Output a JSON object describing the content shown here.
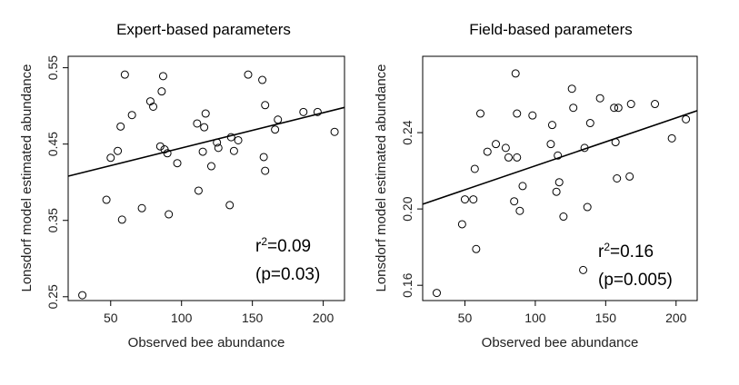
{
  "chart_data": [
    {
      "type": "scatter",
      "title": "Expert-based parameters",
      "xlabel": "Observed bee abundance",
      "ylabel": "Lonsdorf model estimated abundance",
      "xlim": [
        20,
        215
      ],
      "ylim": [
        0.245,
        0.565
      ],
      "xticks": [
        50,
        100,
        150,
        200
      ],
      "xtick_labels": [
        "50",
        "100",
        "150",
        "200"
      ],
      "yticks": [
        0.25,
        0.35,
        0.45,
        0.55
      ],
      "ytick_labels": [
        "0.25",
        "0.35",
        "0.45",
        "0.55"
      ],
      "annotation": {
        "r2_prefix": "r",
        "r2_sup": "2",
        "r2_value": "=0.09",
        "p_text": "(p=0.03)"
      },
      "fit_line": {
        "x": [
          20,
          215
        ],
        "y": [
          0.408,
          0.498
        ]
      },
      "points": [
        {
          "x": 30,
          "y": 0.252
        },
        {
          "x": 47,
          "y": 0.377
        },
        {
          "x": 50,
          "y": 0.432
        },
        {
          "x": 55,
          "y": 0.441
        },
        {
          "x": 57,
          "y": 0.473
        },
        {
          "x": 58,
          "y": 0.351
        },
        {
          "x": 60,
          "y": 0.541
        },
        {
          "x": 65,
          "y": 0.488
        },
        {
          "x": 72,
          "y": 0.366
        },
        {
          "x": 78,
          "y": 0.506
        },
        {
          "x": 80,
          "y": 0.499
        },
        {
          "x": 85,
          "y": 0.447
        },
        {
          "x": 86,
          "y": 0.519
        },
        {
          "x": 87,
          "y": 0.539
        },
        {
          "x": 88,
          "y": 0.443
        },
        {
          "x": 90,
          "y": 0.438
        },
        {
          "x": 91,
          "y": 0.358
        },
        {
          "x": 97,
          "y": 0.425
        },
        {
          "x": 111,
          "y": 0.477
        },
        {
          "x": 112,
          "y": 0.389
        },
        {
          "x": 115,
          "y": 0.44
        },
        {
          "x": 116,
          "y": 0.472
        },
        {
          "x": 117,
          "y": 0.49
        },
        {
          "x": 121,
          "y": 0.421
        },
        {
          "x": 125,
          "y": 0.452
        },
        {
          "x": 126,
          "y": 0.445
        },
        {
          "x": 134,
          "y": 0.37
        },
        {
          "x": 135,
          "y": 0.459
        },
        {
          "x": 137,
          "y": 0.441
        },
        {
          "x": 140,
          "y": 0.455
        },
        {
          "x": 147,
          "y": 0.541
        },
        {
          "x": 157,
          "y": 0.534
        },
        {
          "x": 158,
          "y": 0.433
        },
        {
          "x": 159,
          "y": 0.415
        },
        {
          "x": 159,
          "y": 0.501
        },
        {
          "x": 166,
          "y": 0.469
        },
        {
          "x": 168,
          "y": 0.482
        },
        {
          "x": 186,
          "y": 0.492
        },
        {
          "x": 196,
          "y": 0.492
        },
        {
          "x": 208,
          "y": 0.466
        }
      ]
    },
    {
      "type": "scatter",
      "title": "Field-based parameters",
      "xlabel": "Observed bee abundance",
      "ylabel": "Lonsdorf model estimated abundance",
      "xlim": [
        20,
        215
      ],
      "ylim": [
        0.152,
        0.28
      ],
      "xticks": [
        50,
        100,
        150,
        200
      ],
      "xtick_labels": [
        "50",
        "100",
        "150",
        "200"
      ],
      "yticks": [
        0.16,
        0.2,
        0.24
      ],
      "ytick_labels": [
        "0.16",
        "0.20",
        "0.24"
      ],
      "annotation": {
        "r2_prefix": "r",
        "r2_sup": "2",
        "r2_value": "=0.16",
        "p_text": "(p=0.005)"
      },
      "fit_line": {
        "x": [
          20,
          215
        ],
        "y": [
          0.2025,
          0.2515
        ]
      },
      "points": [
        {
          "x": 30,
          "y": 0.156
        },
        {
          "x": 48,
          "y": 0.192
        },
        {
          "x": 50,
          "y": 0.205
        },
        {
          "x": 56,
          "y": 0.205
        },
        {
          "x": 57,
          "y": 0.221
        },
        {
          "x": 58,
          "y": 0.179
        },
        {
          "x": 61,
          "y": 0.25
        },
        {
          "x": 66,
          "y": 0.23
        },
        {
          "x": 72,
          "y": 0.234
        },
        {
          "x": 79,
          "y": 0.232
        },
        {
          "x": 81,
          "y": 0.227
        },
        {
          "x": 85,
          "y": 0.204
        },
        {
          "x": 86,
          "y": 0.271
        },
        {
          "x": 87,
          "y": 0.25
        },
        {
          "x": 87,
          "y": 0.227
        },
        {
          "x": 89,
          "y": 0.199
        },
        {
          "x": 91,
          "y": 0.212
        },
        {
          "x": 98,
          "y": 0.249
        },
        {
          "x": 111,
          "y": 0.234
        },
        {
          "x": 112,
          "y": 0.244
        },
        {
          "x": 115,
          "y": 0.209
        },
        {
          "x": 116,
          "y": 0.228
        },
        {
          "x": 117,
          "y": 0.214
        },
        {
          "x": 120,
          "y": 0.196
        },
        {
          "x": 126,
          "y": 0.263
        },
        {
          "x": 127,
          "y": 0.253
        },
        {
          "x": 134,
          "y": 0.168
        },
        {
          "x": 135,
          "y": 0.232
        },
        {
          "x": 137,
          "y": 0.201
        },
        {
          "x": 139,
          "y": 0.245
        },
        {
          "x": 146,
          "y": 0.258
        },
        {
          "x": 156,
          "y": 0.253
        },
        {
          "x": 157,
          "y": 0.235
        },
        {
          "x": 158,
          "y": 0.216
        },
        {
          "x": 159,
          "y": 0.253
        },
        {
          "x": 167,
          "y": 0.217
        },
        {
          "x": 168,
          "y": 0.255
        },
        {
          "x": 185,
          "y": 0.255
        },
        {
          "x": 197,
          "y": 0.237
        },
        {
          "x": 207,
          "y": 0.247
        }
      ]
    }
  ]
}
